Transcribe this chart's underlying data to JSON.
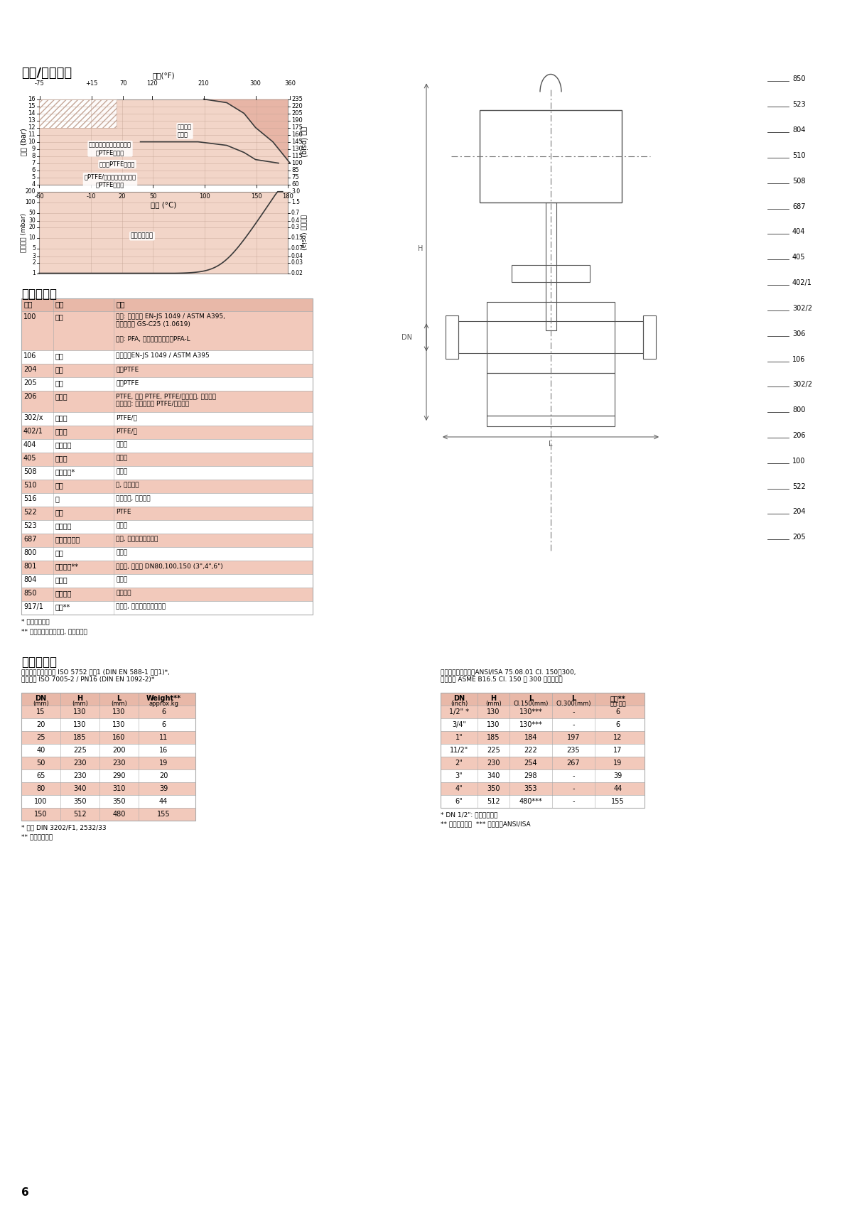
{
  "header_color": "#c0272d",
  "bg_color": "#ffffff",
  "title_section1": "压力/温度范围",
  "title_section2": "部件和材料",
  "title_section3": "尺寸和重量",
  "chart_grid_color": "#c0a090",
  "chart_bg_upper": "#f2d5c8",
  "chart_bg_lower": "#f2d5c8",
  "chart_border": "#808080",
  "materials_table": {
    "headers": [
      "项目",
      "名称",
      "材料"
    ],
    "rows": [
      [
        "100",
        "阀体",
        "壳体: 球墨铸铁 EN-JS 1049 / ASTM A395,\n可选择铸钓 GS-C25 (1.0619)\n\n内衷: PFA, 可选择抗静电内衷PFA-L"
      ],
      [
        "106",
        "阀盖",
        "球墨铸铁EN-JS 1049 / ASTM A395"
      ],
      [
        "204",
        "阀芯",
        "改性PTFE"
      ],
      [
        "205",
        "阀座",
        "改性PTFE"
      ],
      [
        "206",
        "波纹管",
        "PTFE, 改性 PTFE, PTFE/碳抗静电, 哈氏合金\n重载设计: 带不锈锤或 PTFE/碳支撑环"
      ],
      [
        "302/x",
        "导向环",
        "PTFE/碳"
      ],
      [
        "402/1",
        "填料环",
        "PTFE/碳"
      ],
      [
        "404",
        "填料螺母",
        "不锈锄"
      ],
      [
        "405",
        "推力环",
        "不锈锄"
      ],
      [
        "508",
        "行程限位*",
        "不锈锄"
      ],
      [
        "510",
        "支架",
        "钓, 环氧涂层"
      ],
      [
        "516",
        "陀",
        "球墨铸铁, 环氧涂层"
      ],
      [
        "522",
        "回绣",
        "PTFE"
      ],
      [
        "523",
        "行程指示",
        "不锈锄"
      ],
      [
        "687",
        "保护用波纹管",
        "橡胶, 可选配带行程限位"
      ],
      [
        "800",
        "阀杆",
        "不锈锄"
      ],
      [
        "801",
        "导向轴套**",
        "不锈锄, 仅针对 DN80,100,150 (3\",4\",6\")"
      ],
      [
        "804",
        "联轴节",
        "不锈锄"
      ],
      [
        "850",
        "执行机构",
        "按规格书"
      ],
      [
        "917/1",
        "管堤**",
        "不锈锄, 可选外六角螺纹堤头"
      ]
    ],
    "footnotes": [
      "* 取决于关闭力",
      "** 带安全填料笱的选项, 这里未展示"
    ]
  },
  "din_table": {
    "subtitle": "端面到端面长度符合 ISO 5752 系列1 (DIN EN 588-1 系列1)*,\n法兰按照 ISO 7005-2 / PN16 (DIN EN 1092-2)*",
    "headers": [
      "DN\n(mm)",
      "H\n(mm)",
      "L\n(mm)",
      "Weight**\napprox.kg"
    ],
    "rows": [
      [
        "15",
        "130",
        "130",
        "6"
      ],
      [
        "20",
        "130",
        "130",
        "6"
      ],
      [
        "25",
        "185",
        "160",
        "11"
      ],
      [
        "40",
        "225",
        "200",
        "16"
      ],
      [
        "50",
        "230",
        "230",
        "19"
      ],
      [
        "65",
        "230",
        "290",
        "20"
      ],
      [
        "80",
        "340",
        "310",
        "39"
      ],
      [
        "100",
        "350",
        "350",
        "44"
      ],
      [
        "150",
        "512",
        "480",
        "155"
      ]
    ],
    "footnotes": [
      "* 原为 DIN 3202/F1, 2532/33",
      "** 不带执行机构"
    ]
  },
  "ansi_table": {
    "subtitle": "端面到端面长度符合ANSI/ISA 75.08.01 Cl. 150和300,\n法兰按照 ASME B16.5 Cl. 150 和 300 级凸面法兰",
    "headers": [
      "DN\n(inch)",
      "H\n(mm)",
      "L\nCl.150(mm)",
      "L\nCl.300(mm)",
      "近似**\n重量:公斤"
    ],
    "rows": [
      [
        "1/2\" *",
        "130",
        "130***",
        "-",
        "6"
      ],
      [
        "3/4\"",
        "130",
        "130***",
        "-",
        "6"
      ],
      [
        "1\"",
        "185",
        "184",
        "197",
        "12"
      ],
      [
        "11/2\"",
        "225",
        "222",
        "235",
        "17"
      ],
      [
        "2\"",
        "230",
        "254",
        "267",
        "19"
      ],
      [
        "3\"",
        "340",
        "298",
        "-",
        "39"
      ],
      [
        "4\"",
        "350",
        "353",
        "-",
        "44"
      ],
      [
        "6\"",
        "512",
        "480***",
        "-",
        "155"
      ]
    ],
    "footnotes": [
      "* DN 1/2\": 法兰为螺纹孔",
      "** 不带执行机构  *** 不适用于ANSI/ISA"
    ]
  },
  "page_number": "6",
  "label_numbers_right": [
    "850",
    "523",
    "804",
    "510",
    "508",
    "687",
    "404",
    "405",
    "402/1",
    "302/2",
    "306",
    "106",
    "302/2",
    "800",
    "206",
    "100",
    "522",
    "204",
    "205"
  ],
  "pink_color": "#f2c9bb",
  "pink_header_color": "#e8a898",
  "table_border_color": "#aaaaaa",
  "table_header_bg": "#e8b8a8"
}
